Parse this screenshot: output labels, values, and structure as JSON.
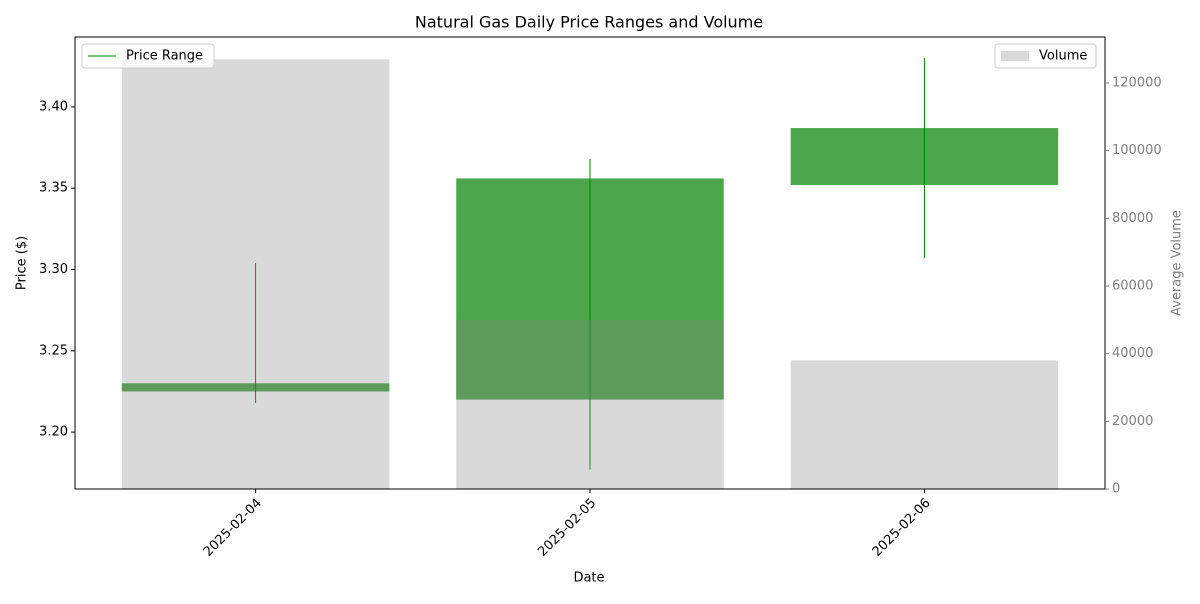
{
  "chart_data": {
    "type": "candlestick",
    "title": "Natural Gas Daily Price Ranges and Volume",
    "x_label": "Date",
    "y_label": "Price ($)",
    "y2_label": "Average Volume",
    "categories": [
      "2025-02-04",
      "2025-02-05",
      "2025-02-06"
    ],
    "series": [
      {
        "name": "Price Range",
        "color": "#008000",
        "open": [
          3.225,
          3.22,
          3.352
        ],
        "high": [
          3.304,
          3.368,
          3.43
        ],
        "low": [
          3.218,
          3.177,
          3.307
        ],
        "close": [
          3.23,
          3.356,
          3.387
        ]
      },
      {
        "name": "Volume",
        "color": "#808080",
        "axis": "y2",
        "values": [
          127000,
          50000,
          38000
        ]
      }
    ],
    "ylim": [
      3.165,
      3.443
    ],
    "yticks": [
      {
        "value": 3.2,
        "label": "3.20"
      },
      {
        "value": 3.25,
        "label": "3.25"
      },
      {
        "value": 3.3,
        "label": "3.30"
      },
      {
        "value": 3.35,
        "label": "3.35"
      },
      {
        "value": 3.4,
        "label": "3.40"
      }
    ],
    "y2lim": [
      0,
      133600
    ],
    "y2ticks": [
      0,
      20000,
      40000,
      60000,
      80000,
      100000,
      120000
    ],
    "legend": [
      "upper left",
      "upper right"
    ]
  }
}
